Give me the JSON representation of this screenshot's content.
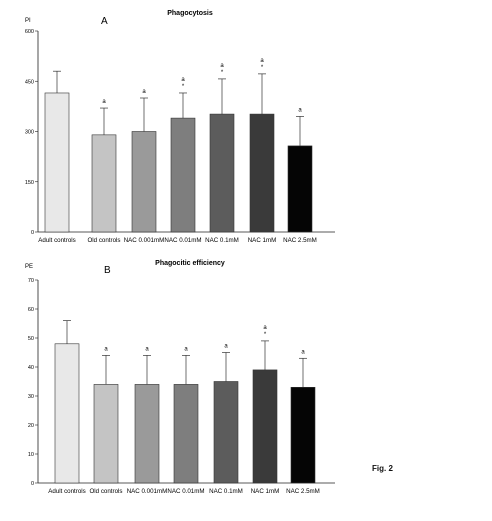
{
  "figure_label": "Fig. 2",
  "chart_data": [
    {
      "type": "bar",
      "panel_letter": "A",
      "title": "Phagocytosis",
      "ylabel": "PI",
      "xlabel": "",
      "ylim": [
        0,
        600
      ],
      "yticks": [
        0,
        150,
        300,
        450,
        600
      ],
      "grid": false,
      "legend": "none",
      "categories": [
        "Adult controls",
        "Old controls",
        "NAC 0.001mM",
        "NAC 0.01mM",
        "NAC 0.1mM",
        "NAC 1mM",
        "NAC 2.5mM"
      ],
      "values": [
        415,
        290,
        300,
        340,
        352,
        352,
        257
      ],
      "errors": [
        65,
        80,
        100,
        75,
        105,
        120,
        88
      ],
      "annotations": [
        "",
        "a",
        "a",
        "a\n*",
        "a\n*",
        "a\n*",
        "a"
      ],
      "bar_colors": [
        "#e8e8e8",
        "#c4c4c4",
        "#9a9a9a",
        "#7e7e7e",
        "#5c5c5c",
        "#3a3a3a",
        "#050505"
      ]
    },
    {
      "type": "bar",
      "panel_letter": "B",
      "title": "Phagocitic efficiency",
      "ylabel": "PE",
      "xlabel": "",
      "ylim": [
        0,
        70
      ],
      "yticks": [
        0,
        10,
        20,
        30,
        40,
        50,
        60,
        70
      ],
      "grid": false,
      "legend": "none",
      "categories": [
        "Adult controls",
        "Old controls",
        "NAC 0.001mM",
        "NAC 0.01mM",
        "NAC 0.1mM",
        "NAC 1mM",
        "NAC 2.5mM"
      ],
      "values": [
        48,
        34,
        34,
        34,
        35,
        39,
        33
      ],
      "errors": [
        8,
        10,
        10,
        10,
        10,
        10,
        10
      ],
      "annotations": [
        "",
        "a",
        "a",
        "a",
        "a",
        "a\n*",
        "a"
      ],
      "bar_colors": [
        "#e8e8e8",
        "#c4c4c4",
        "#9a9a9a",
        "#7e7e7e",
        "#5c5c5c",
        "#3a3a3a",
        "#050505"
      ]
    }
  ]
}
